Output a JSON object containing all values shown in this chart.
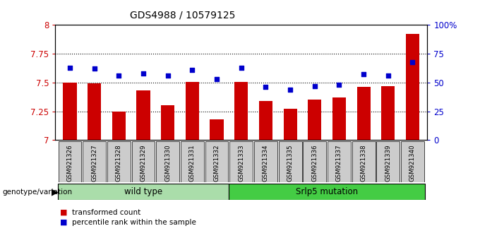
{
  "title": "GDS4988 / 10579125",
  "samples": [
    "GSM921326",
    "GSM921327",
    "GSM921328",
    "GSM921329",
    "GSM921330",
    "GSM921331",
    "GSM921332",
    "GSM921333",
    "GSM921334",
    "GSM921335",
    "GSM921336",
    "GSM921337",
    "GSM921338",
    "GSM921339",
    "GSM921340"
  ],
  "transformed_count": [
    7.5,
    7.49,
    7.25,
    7.43,
    7.3,
    7.505,
    7.18,
    7.505,
    7.34,
    7.27,
    7.35,
    7.37,
    7.46,
    7.47,
    7.92
  ],
  "percentile_rank": [
    63,
    62,
    56,
    58,
    56,
    61,
    53,
    63,
    46,
    44,
    47,
    48,
    57,
    56,
    68
  ],
  "ylim": [
    7.0,
    8.0
  ],
  "yticks": [
    7.0,
    7.25,
    7.5,
    7.75,
    8.0
  ],
  "ytick_labels": [
    "7",
    "7.25",
    "7.5",
    "7.75",
    "8"
  ],
  "right_yticks": [
    0,
    25,
    50,
    75,
    100
  ],
  "right_ytick_labels": [
    "0",
    "25",
    "50",
    "75",
    "100%"
  ],
  "bar_color": "#cc0000",
  "dot_color": "#0000cc",
  "groups": [
    {
      "label": "wild type",
      "start": 0,
      "end": 7,
      "color": "#aaddaa"
    },
    {
      "label": "Srlp5 mutation",
      "start": 7,
      "end": 15,
      "color": "#44cc44"
    }
  ],
  "group_label_prefix": "genotype/variation",
  "legend_items": [
    {
      "label": "transformed count",
      "color": "#cc0000"
    },
    {
      "label": "percentile rank within the sample",
      "color": "#0000cc"
    }
  ],
  "tick_bg_color": "#cccccc"
}
